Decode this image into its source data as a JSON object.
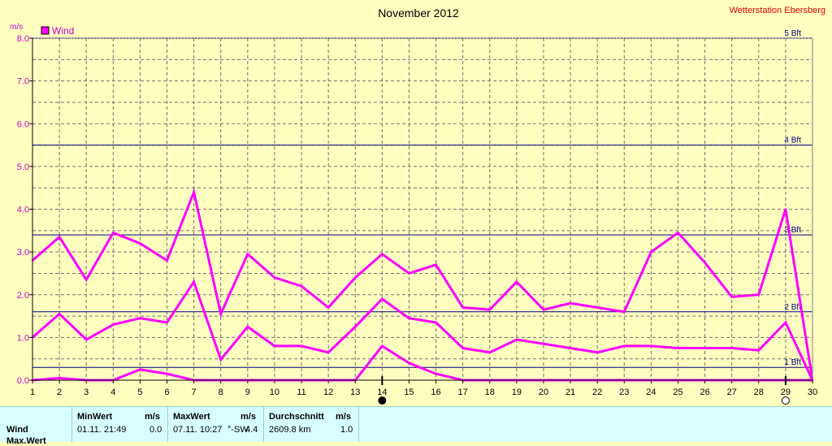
{
  "page": {
    "title": "November 2012",
    "station": "Wetterstation Ebersberg"
  },
  "chart_data": {
    "type": "line",
    "y_unit": "m/s",
    "legend": "Wind",
    "legend_color": "#ff00ff",
    "line_color": "#ff00ff",
    "ref_line_color": "#000080",
    "grid": true,
    "ylim": [
      0,
      8
    ],
    "yticks": [
      "0.0",
      "1.0",
      "2.0",
      "3.0",
      "4.0",
      "5.0",
      "6.0",
      "7.0",
      "8.0"
    ],
    "x": [
      1,
      2,
      3,
      4,
      5,
      6,
      7,
      8,
      9,
      10,
      11,
      12,
      13,
      14,
      15,
      16,
      17,
      18,
      19,
      20,
      21,
      22,
      23,
      24,
      25,
      26,
      27,
      28,
      29,
      30
    ],
    "series": [
      {
        "role": "max",
        "values": [
          2.8,
          3.35,
          2.35,
          3.45,
          3.2,
          2.8,
          4.4,
          1.55,
          2.95,
          2.4,
          2.2,
          1.7,
          2.4,
          2.95,
          2.5,
          2.7,
          1.7,
          1.65,
          2.3,
          1.65,
          1.8,
          1.7,
          1.6,
          3.0,
          3.45,
          2.75,
          1.95,
          2.0,
          4.0,
          0.0
        ]
      },
      {
        "role": "average",
        "values": [
          1.0,
          1.55,
          0.95,
          1.3,
          1.45,
          1.35,
          2.3,
          0.48,
          1.25,
          0.8,
          0.8,
          0.65,
          1.25,
          1.9,
          1.45,
          1.35,
          0.75,
          0.65,
          0.95,
          0.85,
          0.75,
          0.65,
          0.8,
          0.8,
          0.75,
          0.75,
          0.75,
          0.7,
          1.35,
          0.0
        ]
      },
      {
        "role": "min",
        "values": [
          0.0,
          0.05,
          0.0,
          0.0,
          0.25,
          0.15,
          0.0,
          0.0,
          0.0,
          0.0,
          0.0,
          0.0,
          0.0,
          0.8,
          0.4,
          0.15,
          0.0,
          0.0,
          0.0,
          0.0,
          0.0,
          0.0,
          0.0,
          0.0,
          0.0,
          0.0,
          0.0,
          0.0,
          0.0,
          0.0
        ]
      }
    ],
    "beaufort_lines": [
      {
        "label": "1 Bft",
        "value": 0.3
      },
      {
        "label": "2 Bft",
        "value": 1.6
      },
      {
        "label": "3 Bft",
        "value": 3.4
      },
      {
        "label": "4 Bft",
        "value": 5.5
      },
      {
        "label": "5 Bft",
        "value": 8.0
      }
    ],
    "moon_markers": [
      {
        "day": 14,
        "phase": "new-moon"
      },
      {
        "day": 29,
        "phase": "full-moon"
      }
    ]
  },
  "stats": {
    "headers": {
      "min": "MinWert",
      "min_unit": "m/s",
      "max": "MaxWert",
      "max_unit": "m/s",
      "avg": "Durchschnitt",
      "avg_unit": "m/s"
    },
    "rows": [
      {
        "label": "Wind",
        "min_time": "01.11.  21:49",
        "min_value": "0.0",
        "max_time": "07.11.  10:27",
        "max_dir": "SW",
        "max_value": "4.4",
        "distance": "2609.8 km",
        "avg_value": "1.0"
      },
      {
        "label": "Max.Wert"
      }
    ]
  }
}
